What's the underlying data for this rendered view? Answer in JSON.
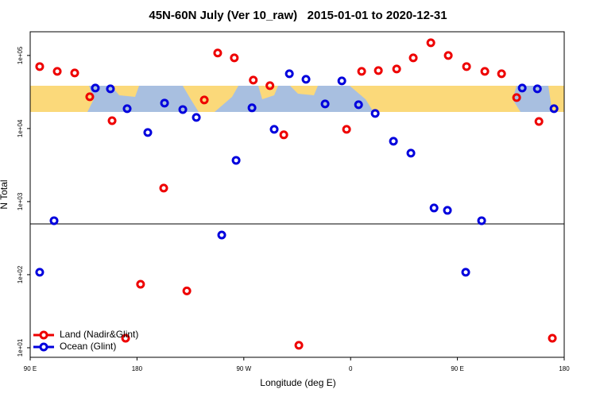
{
  "chart_data": {
    "type": "scatter",
    "title": "45N-60N July (Ver 10_raw)   2015-01-01 to 2020-12-31",
    "x_label": "Longitude (deg E)",
    "y_label": "N Total",
    "log_y": true,
    "legend": "lower left",
    "xlim": [
      90,
      540
    ],
    "xticks": [
      {
        "value": 90,
        "label": "90 E"
      },
      {
        "value": 180,
        "label": "180"
      },
      {
        "value": 270,
        "label": "90 W"
      },
      {
        "value": 360,
        "label": "0"
      },
      {
        "value": 450,
        "label": "90 E"
      },
      {
        "value": 540,
        "label": "180"
      }
    ],
    "ylim": [
      7.4,
      211000
    ],
    "yticks": [
      {
        "value": 10,
        "label": "1e+01"
      },
      {
        "value": 100,
        "label": "1e+02"
      },
      {
        "value": 1000,
        "label": "1e+03"
      },
      {
        "value": 10000,
        "label": "1e+04"
      },
      {
        "value": 100000,
        "label": "1e+05"
      }
    ],
    "series": [
      {
        "name": "Land (Nadir&Glint)",
        "color": "#ee0000",
        "x": [
          98,
          112.8,
          127.5,
          140.2,
          159,
          170.4,
          183,
          202.5,
          222,
          236.7,
          248,
          262,
          278,
          292,
          303.7,
          316.4,
          356.6,
          369.3,
          383.4,
          398.8,
          412.8,
          427.6,
          442.3,
          457.7,
          473.1,
          487.2,
          499.9,
          518.7,
          530
        ],
        "values": [
          70500,
          60600,
          57600,
          27200,
          12800,
          13.5,
          74,
          1530,
          60,
          24600,
          108000,
          92700,
          46000,
          38600,
          8200,
          10.8,
          9750,
          60600,
          62100,
          65300,
          92700,
          149000,
          100000,
          70500,
          60600,
          56200,
          26500,
          12500,
          13.5
        ]
      },
      {
        "name": "Ocean (Glint)",
        "color": "#0000dd",
        "x": [
          98,
          110.1,
          144.9,
          157.6,
          171.7,
          189.1,
          203.2,
          218.6,
          230,
          251.4,
          263.5,
          276.9,
          295.6,
          308.4,
          322.4,
          338.5,
          352.6,
          366.7,
          380.7,
          396.1,
          410.8,
          430.3,
          441.6,
          457,
          470.4,
          504.6,
          517.4,
          531.4
        ],
        "values": [
          108,
          548,
          35800,
          34900,
          18700,
          8830,
          22300,
          18200,
          14200,
          349,
          3670,
          19200,
          9750,
          56200,
          47200,
          21700,
          44900,
          21200,
          16100,
          6700,
          4600,
          818,
          759,
          108,
          548,
          35800,
          34900,
          18700
        ]
      }
    ]
  }
}
